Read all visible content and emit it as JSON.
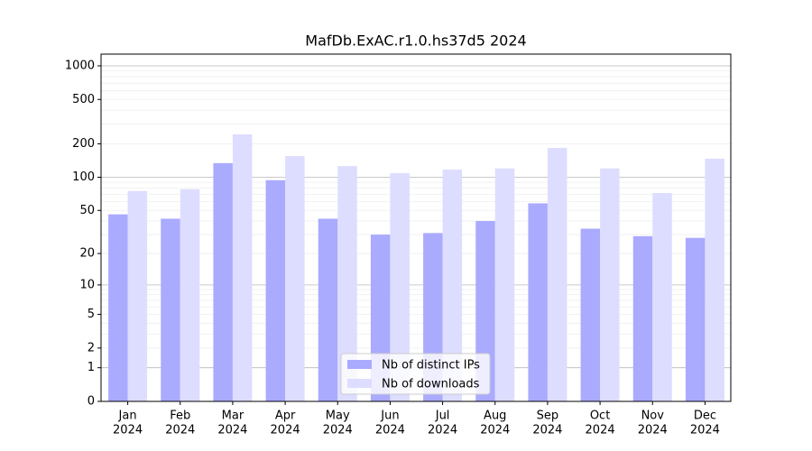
{
  "chart_data": {
    "type": "bar",
    "title": "MafDb.ExAC.r1.0.hs37d5 2024",
    "categories": [
      [
        "Jan",
        "2024"
      ],
      [
        "Feb",
        "2024"
      ],
      [
        "Mar",
        "2024"
      ],
      [
        "Apr",
        "2024"
      ],
      [
        "May",
        "2024"
      ],
      [
        "Jun",
        "2024"
      ],
      [
        "Jul",
        "2024"
      ],
      [
        "Aug",
        "2024"
      ],
      [
        "Sep",
        "2024"
      ],
      [
        "Oct",
        "2024"
      ],
      [
        "Nov",
        "2024"
      ],
      [
        "Dec",
        "2024"
      ]
    ],
    "series": [
      {
        "name": "Nb of distinct IPs",
        "color": "#aaaaff",
        "values": [
          46,
          42,
          134,
          94,
          42,
          30,
          31,
          40,
          58,
          34,
          29,
          28
        ]
      },
      {
        "name": "Nb of downloads",
        "color": "#ddddff",
        "values": [
          75,
          78,
          243,
          155,
          126,
          109,
          117,
          120,
          184,
          120,
          72,
          147
        ]
      }
    ],
    "yscale": "log1p",
    "ylim": [
      0,
      1273
    ],
    "yticks": [
      0,
      1,
      2,
      5,
      10,
      20,
      50,
      100,
      200,
      500,
      1000
    ],
    "grid": true,
    "legend": "lower center"
  }
}
